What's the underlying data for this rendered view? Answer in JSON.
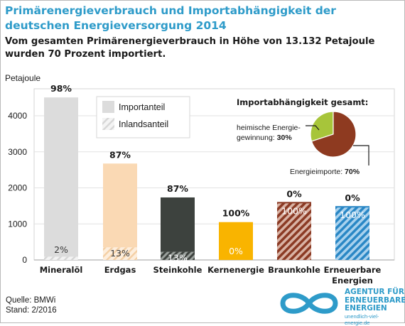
{
  "title": "Primärenergieverbrauch und Importabhängigkeit der deutschen Energieversorgung 2014",
  "subtitle": "Vom gesamten Primärenergieverbrauch in Höhe von 13.132 Petajoule wurden 70 Prozent importiert.",
  "source": "Quelle: BMWi",
  "stand": "Stand: 2/2016",
  "logo": {
    "line1": "AGENTUR FÜR",
    "line2": "ERNEUERBARE",
    "line3": "ENERGIEN",
    "url": "unendlich-viel-energie.de"
  },
  "chart_data": {
    "type": "bar",
    "ylabel": "Petajoule",
    "ylim": [
      0,
      4750
    ],
    "yticks": [
      0,
      1000,
      2000,
      3000,
      4000
    ],
    "categories": [
      "Mineralöl",
      "Erdgas",
      "Steinkohle",
      "Kernenergie",
      "Braunkohle",
      "Erneuerbare Energien"
    ],
    "series": [
      {
        "name": "Importanteil",
        "values": [
          4420,
          2325,
          1510,
          1050,
          0,
          0
        ]
      },
      {
        "name": "Inlandsanteil",
        "values": [
          90,
          350,
          225,
          0,
          1590,
          1475
        ]
      }
    ],
    "top_labels": [
      "98%",
      "87%",
      "87%",
      "100%",
      "0%",
      "0%"
    ],
    "bottom_labels": [
      "2%",
      "13%",
      "13%",
      "0%",
      "100%",
      "100%"
    ],
    "colors": [
      "#dcdcdc",
      "#fad9b4",
      "#3d423e",
      "#f9b400",
      "#8b3a24",
      "#2a87c5"
    ],
    "legend_position": "top-center",
    "pie": {
      "title": "Importabhängigkeit gesamt:",
      "slices": [
        {
          "label": "heimische Energiegewinnung",
          "label_line1": "heimische Energie-",
          "label_line2": "gewinnung: ",
          "pct_text": "30%",
          "value": 30,
          "color": "#a7c53a"
        },
        {
          "label": "Energieimporte",
          "label_line1": "Energieimporte: ",
          "pct_text": "70%",
          "value": 70,
          "color": "#8e3a20"
        }
      ]
    }
  }
}
